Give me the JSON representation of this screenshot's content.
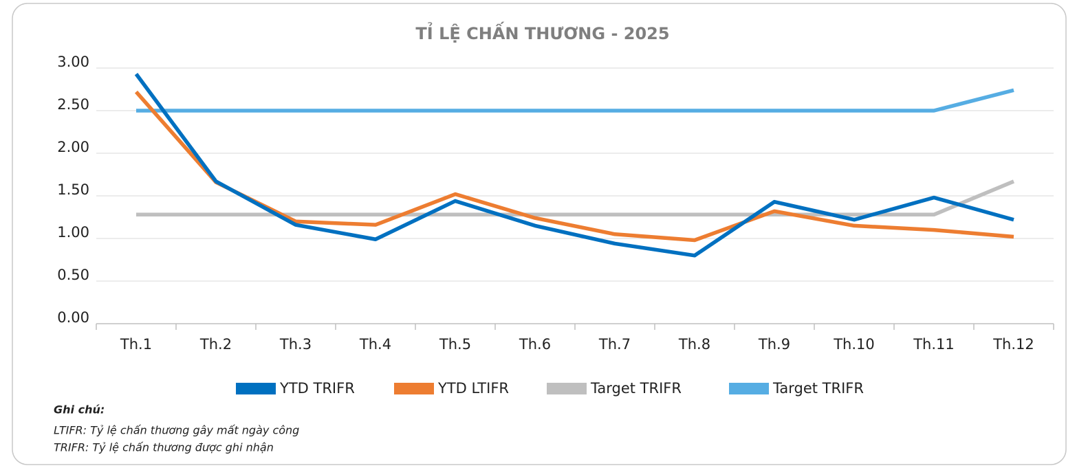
{
  "chart_data": {
    "type": "line",
    "title": "TỈ LỆ CHẤN THƯƠNG - 2025",
    "categories": [
      "Th.1",
      "Th.2",
      "Th.3",
      "Th.4",
      "Th.5",
      "Th.6",
      "Th.7",
      "Th.8",
      "Th.9",
      "Th.10",
      "Th.11",
      "Th.12"
    ],
    "series": [
      {
        "name": "YTD TRIFR",
        "color": "#0070c0",
        "values": [
          2.93,
          1.67,
          1.16,
          0.99,
          1.44,
          1.15,
          0.94,
          0.8,
          1.43,
          1.22,
          1.48,
          1.22
        ]
      },
      {
        "name": "YTD LTIFR",
        "color": "#ed7d31",
        "values": [
          2.72,
          1.66,
          1.2,
          1.16,
          1.52,
          1.24,
          1.05,
          0.98,
          1.32,
          1.15,
          1.1,
          1.02
        ]
      },
      {
        "name": "Target TRIFR",
        "color": "#bfbfbf",
        "values": [
          1.28,
          1.28,
          1.28,
          1.28,
          1.28,
          1.28,
          1.28,
          1.28,
          1.28,
          1.28,
          1.28,
          1.67
        ]
      },
      {
        "name": "Target TRIFR",
        "color": "#56ade3",
        "values": [
          2.5,
          2.5,
          2.5,
          2.5,
          2.5,
          2.5,
          2.5,
          2.5,
          2.5,
          2.5,
          2.5,
          2.74
        ]
      }
    ],
    "ylim": [
      0,
      3
    ],
    "yticks": [
      {
        "value": 0,
        "label": "0.00"
      },
      {
        "value": 0.5,
        "label": "0.50"
      },
      {
        "value": 1,
        "label": "1.00"
      },
      {
        "value": 1.5,
        "label": "1.50"
      },
      {
        "value": 2,
        "label": "2.00"
      },
      {
        "value": 2.5,
        "label": "2.50"
      },
      {
        "value": 3,
        "label": "3.00"
      }
    ],
    "grid": true,
    "legend": "bottom",
    "notes": {
      "heading": "Ghi chú:",
      "lines": [
        "LTIFR: Tỷ lệ chấn thương gây mất ngày công",
        "TRIFR: Tỷ lệ chấn thương được ghi nhận"
      ]
    }
  }
}
